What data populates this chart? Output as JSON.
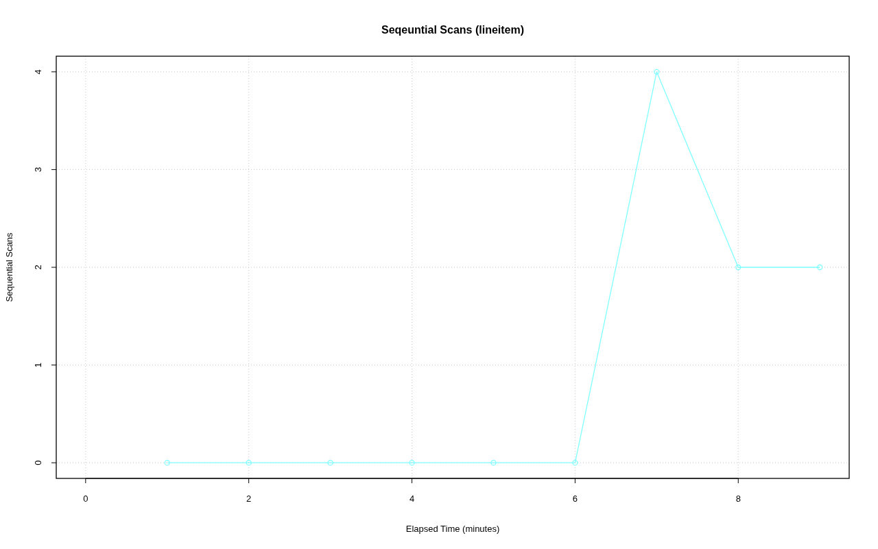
{
  "chart_data": {
    "type": "line",
    "title": "Seqeuntial Scans (lineitem)",
    "xlabel": "Elapsed Time (minutes)",
    "ylabel": "Sequential Scans",
    "x": [
      1,
      2,
      3,
      4,
      5,
      6,
      7,
      8,
      9
    ],
    "series": [
      {
        "color": "#80ffff",
        "values": [
          0,
          0,
          0,
          0,
          0,
          0,
          4,
          2,
          2
        ]
      }
    ],
    "xlim": [
      -0.36,
      9.36
    ],
    "xticks": [
      0,
      2,
      4,
      6,
      8
    ],
    "ylim": [
      -0.16,
      4.16
    ],
    "yticks": [
      0,
      1,
      2,
      3,
      4
    ],
    "grid": true,
    "marker": "circle",
    "line_style": "solid"
  }
}
